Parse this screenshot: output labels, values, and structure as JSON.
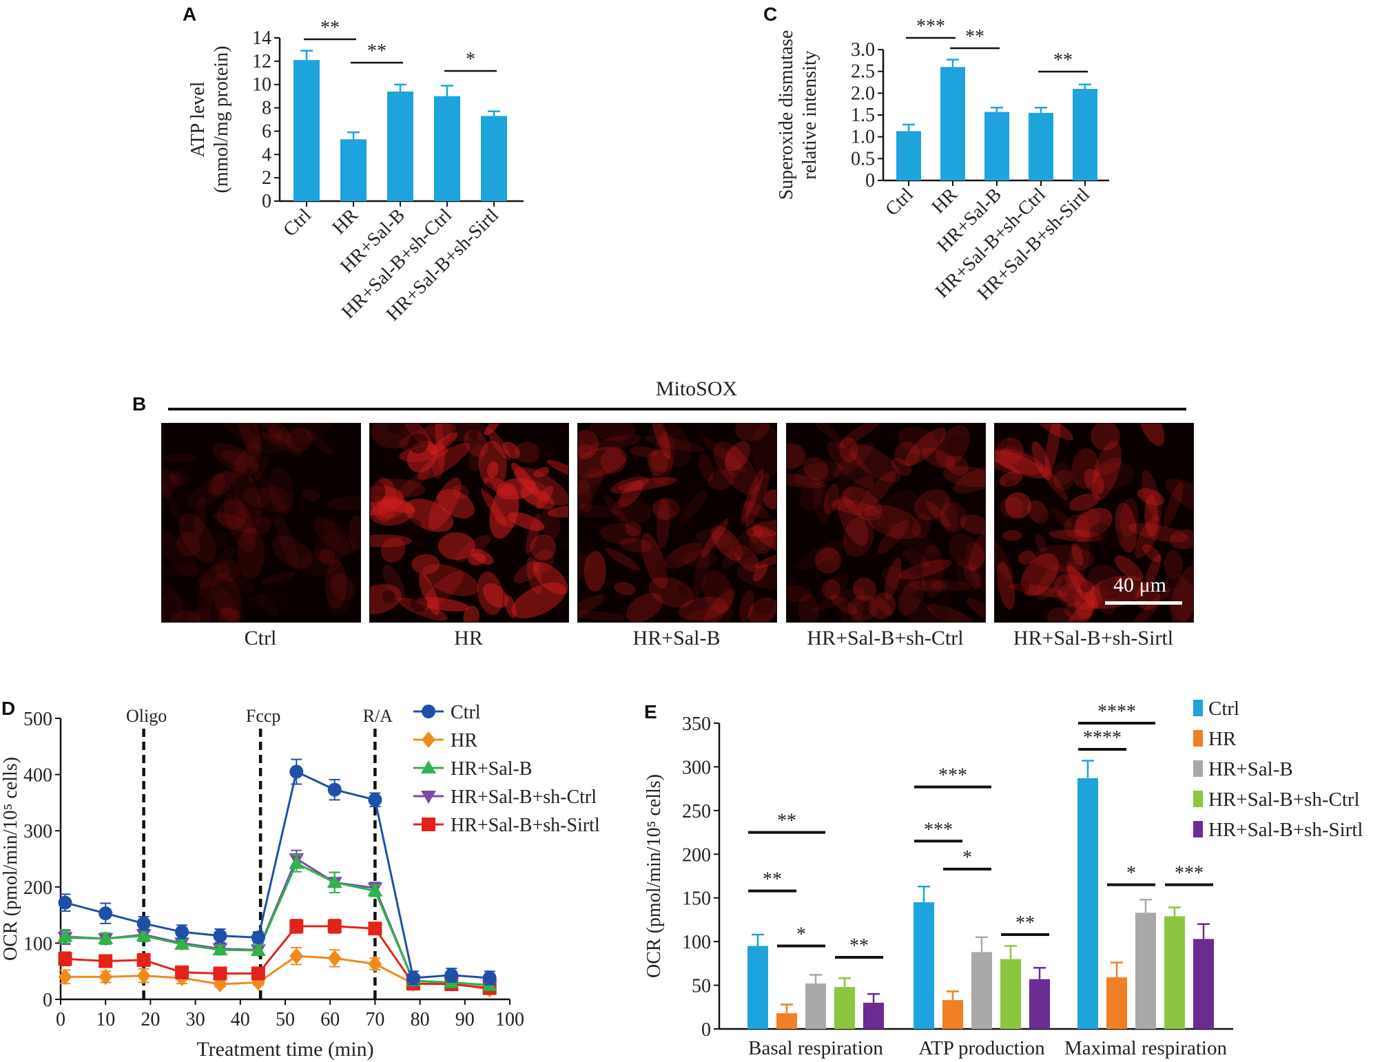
{
  "panels": {
    "A": "A",
    "B": "B",
    "C": "C",
    "D": "D",
    "E": "E"
  },
  "mitosox": {
    "title": "MitoSOX",
    "labels": [
      "Ctrl",
      "HR",
      "HR+Sal-B",
      "HR+Sal-B+sh-Ctrl",
      "HR+Sal-B+sh-Sirtl"
    ],
    "brightness": [
      0.25,
      0.95,
      0.6,
      0.5,
      0.7
    ],
    "scale_bar_label": "40 μm"
  },
  "colors": {
    "blue_bar": "#1ea3dc",
    "ctrl": "#1f4fa8",
    "hr": "#f08a1e",
    "salb": "#2fb34a",
    "shctrl": "#7b4aa8",
    "shsirt": "#e2231a",
    "e_ctrl": "#1ea3dc",
    "e_hr": "#f07f25",
    "e_salb": "#a9a9a9",
    "e_shctrl": "#8cc640",
    "e_shsirt": "#6a2c91",
    "fluor": "#d21e1e"
  },
  "chart_data": [
    {
      "id": "A",
      "type": "bar",
      "title": "",
      "ylabel_lines": [
        "ATP level",
        "(mmol/mg protein)"
      ],
      "categories": [
        "Ctrl",
        "HR",
        "HR+Sal-B",
        "HR+Sal-B+sh-Ctrl",
        "HR+Sal-B+sh-Sirtl"
      ],
      "values": [
        12.1,
        5.3,
        9.4,
        9.0,
        7.3
      ],
      "errors": [
        0.8,
        0.6,
        0.6,
        0.9,
        0.4
      ],
      "ylim": [
        0,
        14
      ],
      "yticks": [
        "0",
        "2",
        "4",
        "6",
        "8",
        "10",
        "12",
        "14"
      ],
      "significance": [
        {
          "from": 0,
          "to": 1,
          "label": "**"
        },
        {
          "from": 1,
          "to": 2,
          "label": "**"
        },
        {
          "from": 3,
          "to": 4,
          "label": "*"
        }
      ]
    },
    {
      "id": "C",
      "type": "bar",
      "title": "",
      "ylabel_lines": [
        "Superoxide dismutase",
        "relative intensity"
      ],
      "categories": [
        "Ctrl",
        "HR",
        "HR+Sal-B",
        "HR+Sal-B+sh-Ctrl",
        "HR+Sal-B+sh-Sirtl"
      ],
      "values": [
        1.13,
        2.6,
        1.57,
        1.55,
        2.1
      ],
      "errors": [
        0.15,
        0.17,
        0.1,
        0.12,
        0.1
      ],
      "ylim": [
        0,
        3.0
      ],
      "yticks": [
        "0",
        "0.5",
        "1.0",
        "1.5",
        "2.0",
        "2.5",
        "3.0"
      ],
      "significance": [
        {
          "from": 0,
          "to": 1,
          "label": "***"
        },
        {
          "from": 1,
          "to": 2,
          "label": "**"
        },
        {
          "from": 3,
          "to": 4,
          "label": "**"
        }
      ]
    },
    {
      "id": "D",
      "type": "line",
      "xlabel": "Treatment time (min)",
      "ylabel": "OCR (pmol/min/10⁵ cells)",
      "x": [
        1,
        10,
        18.5,
        27,
        35.5,
        44,
        52.5,
        61,
        70,
        78.5,
        87,
        95.5
      ],
      "xlim": [
        0,
        100
      ],
      "ylim": [
        0,
        500
      ],
      "xticks": [
        "0",
        "10",
        "20",
        "30",
        "40",
        "50",
        "60",
        "70",
        "80",
        "90",
        "100"
      ],
      "yticks": [
        "0",
        "100",
        "200",
        "300",
        "400",
        "500"
      ],
      "injections": [
        {
          "x": 18.5,
          "label": "Oligo"
        },
        {
          "x": 44.5,
          "label": "Fccp"
        },
        {
          "x": 70,
          "label": "R/A"
        }
      ],
      "series": [
        {
          "name": "Ctrl",
          "marker": "circle",
          "colorKey": "ctrl",
          "values": [
            172,
            153,
            135,
            120,
            113,
            110,
            405,
            373,
            355,
            38,
            43,
            38
          ],
          "errors": [
            15,
            18,
            12,
            12,
            12,
            10,
            22,
            18,
            12,
            12,
            12,
            12
          ]
        },
        {
          "name": "HR",
          "marker": "diamond",
          "colorKey": "hr",
          "values": [
            40,
            40,
            42,
            38,
            27,
            30,
            77,
            73,
            63,
            28,
            28,
            18
          ],
          "errors": [
            12,
            10,
            12,
            10,
            5,
            5,
            15,
            15,
            10,
            5,
            5,
            5
          ]
        },
        {
          "name": "HR+Sal-B",
          "marker": "triangle-up",
          "colorKey": "salb",
          "values": [
            112,
            108,
            113,
            98,
            88,
            87,
            242,
            208,
            193,
            33,
            30,
            25
          ],
          "errors": [
            12,
            10,
            10,
            8,
            8,
            8,
            15,
            18,
            10,
            8,
            8,
            8
          ]
        },
        {
          "name": "HR+Sal-B+sh-Ctrl",
          "marker": "triangle-down",
          "colorKey": "shctrl",
          "values": [
            110,
            108,
            115,
            100,
            90,
            88,
            250,
            208,
            198,
            33,
            30,
            25
          ],
          "errors": [
            12,
            10,
            10,
            8,
            8,
            8,
            15,
            18,
            10,
            8,
            8,
            8
          ]
        },
        {
          "name": "HR+Sal-B+sh-Sirtl",
          "marker": "square",
          "colorKey": "shsirt",
          "values": [
            72,
            68,
            70,
            48,
            46,
            46,
            130,
            130,
            126,
            28,
            27,
            20
          ],
          "errors": [
            12,
            10,
            10,
            10,
            10,
            10,
            12,
            12,
            10,
            8,
            8,
            8
          ]
        }
      ]
    },
    {
      "id": "E",
      "type": "bar",
      "xlabel": "",
      "ylabel": "OCR (pmol/min/10⁵ cells)",
      "groups": [
        "Basal respiration",
        "ATP production",
        "Maximal respiration"
      ],
      "ylim": [
        0,
        350
      ],
      "yticks": [
        "0",
        "50",
        "100",
        "150",
        "200",
        "250",
        "300",
        "350"
      ],
      "series": [
        {
          "name": "Ctrl",
          "colorKey": "e_ctrl",
          "values": [
            95,
            145,
            287
          ],
          "errors": [
            13,
            18,
            20
          ]
        },
        {
          "name": "HR",
          "colorKey": "e_hr",
          "values": [
            18,
            33,
            59
          ],
          "errors": [
            10,
            10,
            17
          ]
        },
        {
          "name": "HR+Sal-B",
          "colorKey": "e_salb",
          "values": [
            52,
            88,
            133
          ],
          "errors": [
            10,
            17,
            15
          ]
        },
        {
          "name": "HR+Sal-B+sh-Ctrl",
          "colorKey": "e_shctrl",
          "values": [
            48,
            80,
            129
          ],
          "errors": [
            10,
            15,
            10
          ]
        },
        {
          "name": "HR+Sal-B+sh-Sirtl",
          "colorKey": "e_shsirt",
          "values": [
            30,
            57,
            103
          ],
          "errors": [
            10,
            13,
            17
          ]
        }
      ],
      "significance": [
        {
          "group": 0,
          "from": 0,
          "to": 1,
          "y": 158,
          "label": "**"
        },
        {
          "group": 0,
          "from": 0,
          "to": 2,
          "y": 225,
          "label": "**"
        },
        {
          "group": 0,
          "from": 1,
          "to": 2,
          "y": 95,
          "label": "*"
        },
        {
          "group": 0,
          "from": 3,
          "to": 4,
          "y": 82,
          "label": "**"
        },
        {
          "group": 1,
          "from": 0,
          "to": 1,
          "y": 215,
          "label": "***"
        },
        {
          "group": 1,
          "from": 0,
          "to": 2,
          "y": 277,
          "label": "***"
        },
        {
          "group": 1,
          "from": 1,
          "to": 2,
          "y": 183,
          "label": "*"
        },
        {
          "group": 1,
          "from": 3,
          "to": 4,
          "y": 108,
          "label": "**"
        },
        {
          "group": 2,
          "from": 0,
          "to": 1,
          "y": 320,
          "label": "****"
        },
        {
          "group": 2,
          "from": 0,
          "to": 2,
          "y": 350,
          "label": "****"
        },
        {
          "group": 2,
          "from": 1,
          "to": 2,
          "y": 165,
          "label": "*"
        },
        {
          "group": 2,
          "from": 3,
          "to": 4,
          "y": 165,
          "label": "***"
        }
      ]
    }
  ]
}
